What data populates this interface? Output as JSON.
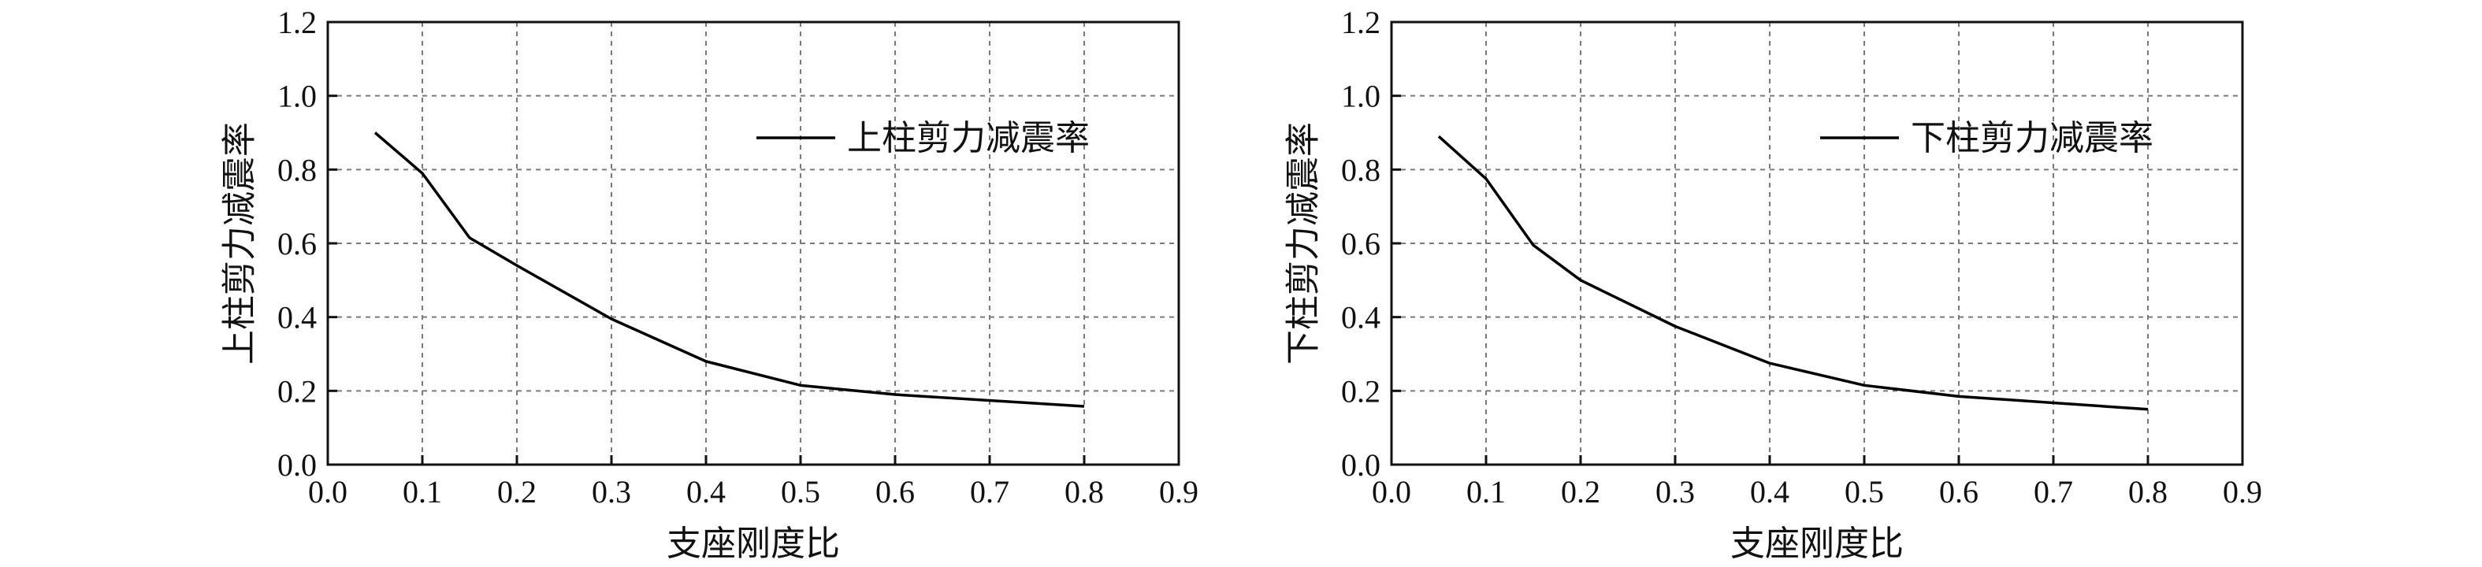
{
  "chart_data": [
    {
      "type": "line",
      "xlabel": "支座刚度比",
      "ylabel": "上柱剪力减震率",
      "xlim": [
        0.0,
        0.9
      ],
      "ylim": [
        0.0,
        1.2
      ],
      "xticks": [
        "0.0",
        "0.1",
        "0.2",
        "0.3",
        "0.4",
        "0.5",
        "0.6",
        "0.7",
        "0.8",
        "0.9"
      ],
      "yticks": [
        "0.0",
        "0.2",
        "0.4",
        "0.6",
        "0.8",
        "1.0",
        "1.2"
      ],
      "grid": true,
      "legend_position": "top-right",
      "series": [
        {
          "name": "上柱剪力减震率",
          "color": "#000000",
          "x": [
            0.05,
            0.1,
            0.15,
            0.2,
            0.3,
            0.4,
            0.5,
            0.6,
            0.8
          ],
          "y": [
            0.9,
            0.79,
            0.615,
            0.54,
            0.395,
            0.28,
            0.215,
            0.19,
            0.158
          ]
        }
      ]
    },
    {
      "type": "line",
      "xlabel": "支座刚度比",
      "ylabel": "下柱剪力减震率",
      "xlim": [
        0.0,
        0.9
      ],
      "ylim": [
        0.0,
        1.2
      ],
      "xticks": [
        "0.0",
        "0.1",
        "0.2",
        "0.3",
        "0.4",
        "0.5",
        "0.6",
        "0.7",
        "0.8",
        "0.9"
      ],
      "yticks": [
        "0.0",
        "0.2",
        "0.4",
        "0.6",
        "0.8",
        "1.0",
        "1.2"
      ],
      "grid": true,
      "legend_position": "top-right",
      "series": [
        {
          "name": "下柱剪力减震率",
          "color": "#000000",
          "x": [
            0.05,
            0.1,
            0.15,
            0.2,
            0.3,
            0.4,
            0.5,
            0.6,
            0.8
          ],
          "y": [
            0.89,
            0.775,
            0.595,
            0.5,
            0.375,
            0.275,
            0.215,
            0.185,
            0.15
          ]
        }
      ]
    }
  ]
}
